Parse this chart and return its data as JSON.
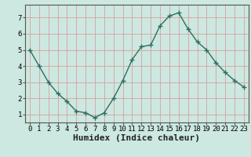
{
  "x": [
    0,
    1,
    2,
    3,
    4,
    5,
    6,
    7,
    8,
    9,
    10,
    11,
    12,
    13,
    14,
    15,
    16,
    17,
    18,
    19,
    20,
    21,
    22,
    23
  ],
  "y": [
    5.0,
    4.0,
    3.0,
    2.3,
    1.8,
    1.2,
    1.1,
    0.8,
    1.1,
    2.0,
    3.1,
    4.4,
    5.2,
    5.3,
    6.5,
    7.1,
    7.3,
    6.3,
    5.5,
    5.0,
    4.2,
    3.6,
    3.1,
    2.7
  ],
  "line_color": "#2d6e62",
  "marker": "+",
  "markersize": 4,
  "linewidth": 1.0,
  "bg_color": "#cce8e0",
  "grid_color": "#d8a0a0",
  "xlabel": "Humidex (Indice chaleur)",
  "xlabel_fontsize": 8,
  "xlim": [
    -0.5,
    23.5
  ],
  "ylim": [
    0.5,
    7.8
  ],
  "yticks": [
    1,
    2,
    3,
    4,
    5,
    6,
    7
  ],
  "xticks": [
    0,
    1,
    2,
    3,
    4,
    5,
    6,
    7,
    8,
    9,
    10,
    11,
    12,
    13,
    14,
    15,
    16,
    17,
    18,
    19,
    20,
    21,
    22,
    23
  ],
  "tick_fontsize": 6.5,
  "spine_color": "#555555"
}
